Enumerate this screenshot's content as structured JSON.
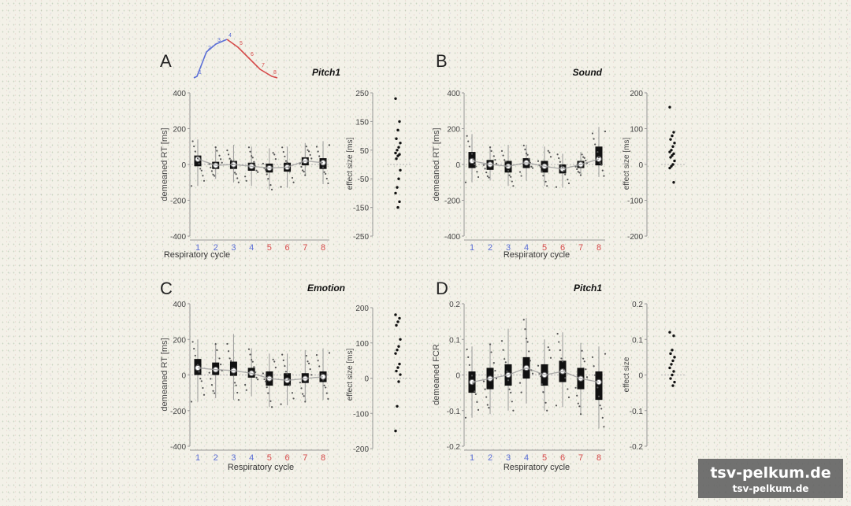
{
  "watermark": {
    "line1": "tsv-pelkum.de",
    "line2": "tsv-pelkum.de"
  },
  "colors": {
    "inhale": "#5b6fd6",
    "exhale": "#d64a4a",
    "box": "#111111",
    "whisker": "#9a9a9a",
    "fit": "#9a9a9a"
  },
  "chart_data": [
    {
      "type": "box",
      "letter": "A",
      "title": "Pitch1",
      "xlabel": "Respiratory cycle",
      "ylabel": "demeaned RT [ms]",
      "categories": [
        "1",
        "2",
        "3",
        "4",
        "5",
        "6",
        "7",
        "8"
      ],
      "ylim": [
        -400,
        400
      ],
      "yticks": [
        400,
        200,
        0,
        -200,
        -400
      ],
      "medians": [
        30,
        -5,
        0,
        -10,
        -20,
        -15,
        20,
        10
      ],
      "q1": [
        -10,
        -25,
        -25,
        -35,
        -45,
        -40,
        -5,
        -25
      ],
      "q3": [
        50,
        15,
        20,
        10,
        5,
        10,
        40,
        35
      ],
      "whisker_low": [
        -120,
        -80,
        -100,
        -120,
        -140,
        -130,
        -60,
        -110
      ],
      "whisker_high": [
        140,
        100,
        110,
        100,
        90,
        100,
        120,
        130
      ],
      "effect": {
        "ylabel": "effect size [ms]",
        "ylim": [
          -250,
          250
        ],
        "yticks": [
          250,
          150,
          50,
          -50,
          -150,
          -250
        ],
        "values": [
          230,
          150,
          120,
          90,
          75,
          60,
          50,
          40,
          35,
          30,
          20,
          -20,
          -50,
          -80,
          -100,
          -130,
          -150
        ]
      },
      "inset": {
        "numbers": [
          "1",
          "2",
          "3",
          "4",
          "5",
          "6",
          "7",
          "8"
        ]
      }
    },
    {
      "type": "box",
      "letter": "B",
      "title": "Sound",
      "xlabel": "Respiratory cycle",
      "ylabel": "demeaned RT [ms]",
      "categories": [
        "1",
        "2",
        "3",
        "4",
        "5",
        "6",
        "7",
        "8"
      ],
      "ylim": [
        -400,
        400
      ],
      "yticks": [
        400,
        200,
        0,
        -200,
        -400
      ],
      "medians": [
        20,
        0,
        -10,
        10,
        -10,
        -25,
        0,
        30
      ],
      "q1": [
        -20,
        -30,
        -45,
        -20,
        -45,
        -50,
        -20,
        -5
      ],
      "q3": [
        70,
        25,
        20,
        35,
        20,
        0,
        20,
        100
      ],
      "whisker_low": [
        -100,
        -90,
        -120,
        -90,
        -120,
        -130,
        -60,
        -70
      ],
      "whisker_high": [
        170,
        100,
        110,
        110,
        100,
        60,
        70,
        210
      ],
      "effect": {
        "ylabel": "effect size [ms]",
        "ylim": [
          -200,
          200
        ],
        "yticks": [
          200,
          100,
          0,
          -100,
          -200
        ],
        "values": [
          160,
          90,
          80,
          70,
          60,
          50,
          40,
          35,
          30,
          25,
          20,
          10,
          0,
          -5,
          -10,
          -50
        ]
      }
    },
    {
      "type": "box",
      "letter": "C",
      "title": "Emotion",
      "xlabel": "Respiratory cycle",
      "ylabel": "demeaned RT [ms]",
      "categories": [
        "1",
        "2",
        "3",
        "4",
        "5",
        "6",
        "7",
        "8"
      ],
      "ylim": [
        -400,
        400
      ],
      "yticks": [
        400,
        200,
        0,
        -200,
        -400
      ],
      "medians": [
        40,
        30,
        25,
        10,
        -20,
        -30,
        -20,
        -10
      ],
      "q1": [
        0,
        0,
        -5,
        -15,
        -60,
        -60,
        -45,
        -40
      ],
      "q3": [
        90,
        70,
        75,
        40,
        20,
        10,
        10,
        20
      ],
      "whisker_low": [
        -150,
        -130,
        -140,
        -120,
        -180,
        -170,
        -150,
        -140
      ],
      "whisker_high": [
        200,
        180,
        230,
        150,
        120,
        120,
        140,
        150
      ],
      "effect": {
        "ylabel": "effect size [ms]",
        "ylim": [
          -200,
          200
        ],
        "yticks": [
          200,
          100,
          0,
          -100,
          -200
        ],
        "values": [
          180,
          170,
          160,
          150,
          110,
          90,
          80,
          70,
          40,
          30,
          20,
          10,
          -10,
          -80,
          -150
        ]
      }
    },
    {
      "type": "box",
      "letter": "D",
      "title": "Pitch1",
      "xlabel": "Respiratory cycle",
      "ylabel": "demeaned FCR",
      "categories": [
        "1",
        "2",
        "3",
        "4",
        "5",
        "6",
        "7",
        "8"
      ],
      "ylim": [
        -0.2,
        0.2
      ],
      "yticks": [
        0.2,
        0.1,
        0,
        -0.1,
        -0.2
      ],
      "medians": [
        -0.02,
        -0.01,
        0.0,
        0.02,
        0.0,
        0.01,
        -0.01,
        -0.02
      ],
      "q1": [
        -0.05,
        -0.04,
        -0.03,
        -0.01,
        -0.03,
        -0.02,
        -0.04,
        -0.07
      ],
      "q3": [
        0.01,
        0.02,
        0.03,
        0.05,
        0.03,
        0.04,
        0.02,
        0.01
      ],
      "whisker_low": [
        -0.12,
        -0.11,
        -0.1,
        -0.08,
        -0.1,
        -0.09,
        -0.11,
        -0.15
      ],
      "whisker_high": [
        0.08,
        0.09,
        0.13,
        0.16,
        0.1,
        0.12,
        0.09,
        0.08
      ],
      "effect": {
        "ylabel": "effect size",
        "ylim": [
          -0.2,
          0.2
        ],
        "yticks": [
          0.2,
          0.1,
          0,
          -0.1,
          -0.2
        ],
        "values": [
          0.12,
          0.11,
          0.07,
          0.06,
          0.05,
          0.04,
          0.03,
          0.02,
          0.01,
          0.0,
          -0.01,
          -0.02,
          -0.03
        ]
      }
    }
  ]
}
